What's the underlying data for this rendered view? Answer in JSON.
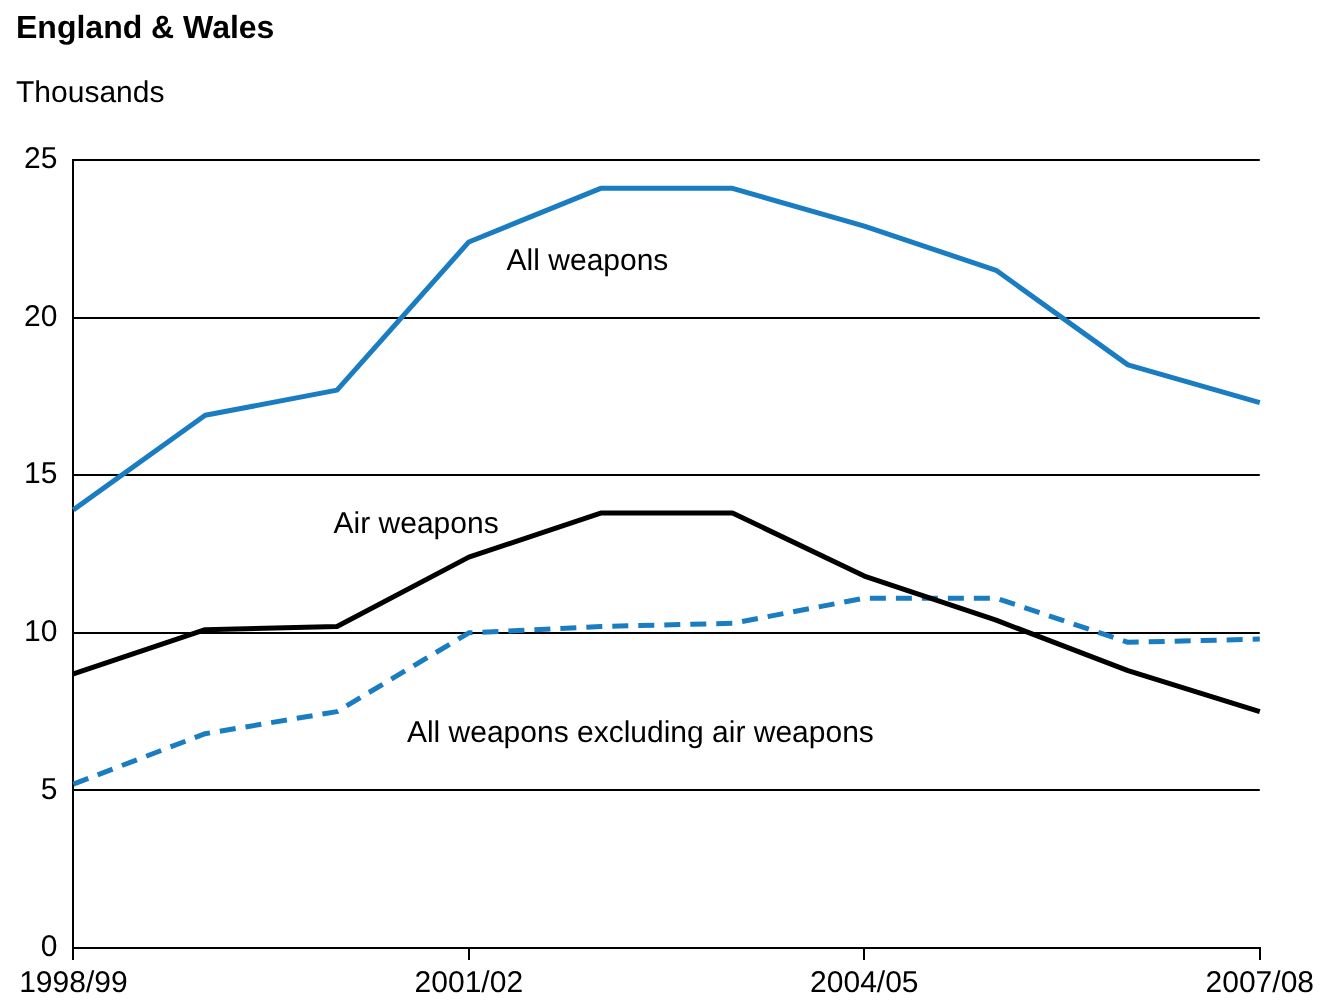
{
  "chart_data": {
    "type": "line",
    "title": "England & Wales",
    "ylabel": "Thousands",
    "categories": [
      "1998/99",
      null,
      null,
      "2001/02",
      null,
      null,
      "2004/05",
      null,
      null,
      "2007/08"
    ],
    "series": [
      {
        "name": "All weapons",
        "color": "#1a7cc1",
        "line_style": "solid",
        "values": [
          13.9,
          16.9,
          17.7,
          22.4,
          24.1,
          24.1,
          22.9,
          21.5,
          18.5,
          17.3
        ]
      },
      {
        "name": "Air weapons",
        "color": "#000000",
        "line_style": "solid",
        "values": [
          8.7,
          10.1,
          10.2,
          12.4,
          13.8,
          13.8,
          11.8,
          10.4,
          8.8,
          7.5
        ]
      },
      {
        "name": "All weapons excluding air weapons",
        "color": "#1a7cc1",
        "line_style": "dashed",
        "values": [
          5.2,
          6.8,
          7.5,
          10.0,
          10.2,
          10.3,
          11.1,
          11.1,
          9.7,
          9.8
        ]
      }
    ],
    "ylim": [
      0,
      25
    ],
    "yticks": [
      0,
      5,
      10,
      15,
      20,
      25
    ],
    "grid": "y",
    "legend": false,
    "marker": "none"
  }
}
